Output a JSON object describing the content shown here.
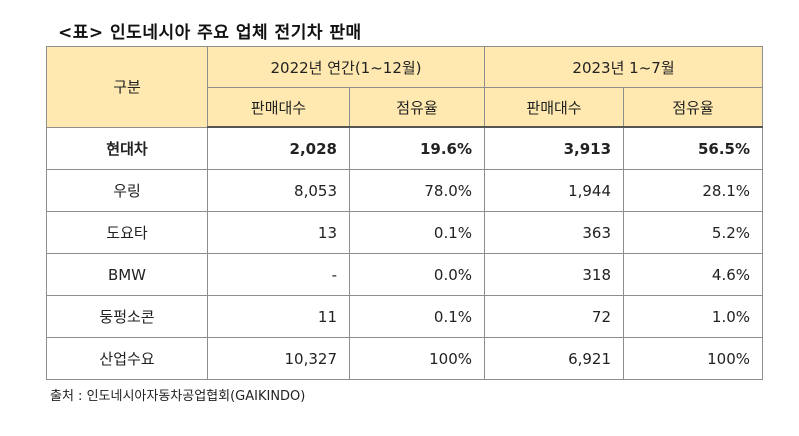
{
  "title": "<표> 인도네시아 주요 업체 전기차 판매",
  "table": {
    "corner_header": "구분",
    "period_headers": [
      "2022년 연간(1~12월)",
      "2023년 1~7월"
    ],
    "sub_headers": [
      "판매대수",
      "점유율",
      "판매대수",
      "점유율"
    ],
    "rows": [
      {
        "label": "현대차",
        "cells": [
          "2,028",
          "19.6%",
          "3,913",
          "56.5%"
        ]
      },
      {
        "label": "우링",
        "cells": [
          "8,053",
          "78.0%",
          "1,944",
          "28.1%"
        ]
      },
      {
        "label": "도요타",
        "cells": [
          "13",
          "0.1%",
          "363",
          "5.2%"
        ]
      },
      {
        "label": "BMW",
        "cells": [
          "-",
          "0.0%",
          "318",
          "4.6%"
        ]
      },
      {
        "label": "둥펑소콘",
        "cells": [
          "11",
          "0.1%",
          "72",
          "1.0%"
        ]
      },
      {
        "label": "산업수요",
        "cells": [
          "10,327",
          "100%",
          "6,921",
          "100%"
        ]
      }
    ]
  },
  "source": "출처 : 인도네시아자동차공업협회(GAIKINDO)",
  "colors": {
    "header_bg": "#ffe9b0",
    "border": "#8e8e8e"
  }
}
